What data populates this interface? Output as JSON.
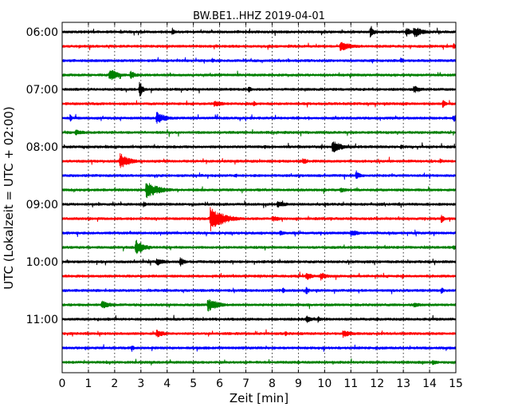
{
  "chart_data": {
    "type": "line",
    "title": "BW.BE1..HHZ 2019-04-01",
    "xlabel": "Zeit  [min]",
    "ylabel": "UTC (Lokalzeit = UTC + 02:00)",
    "xlim": [
      0,
      15
    ],
    "x_ticks": [
      "0",
      "1",
      "2",
      "3",
      "4",
      "5",
      "6",
      "7",
      "8",
      "9",
      "10",
      "11",
      "12",
      "13",
      "14",
      "15"
    ],
    "y_ticks": [
      "06:00",
      "07:00",
      "08:00",
      "09:00",
      "10:00",
      "11:00"
    ],
    "grid": "vertical dotted",
    "trace_colors": [
      "#000000",
      "#ff0000",
      "#0000ff",
      "#008000"
    ],
    "traces": [
      {
        "start": "06:00",
        "events": [
          {
            "t": 4.2,
            "amp": 0.45,
            "dur": 0.12
          },
          {
            "t": 11.75,
            "amp": 0.85,
            "dur": 0.12
          },
          {
            "t": 13.1,
            "amp": 0.6,
            "dur": 0.2
          },
          {
            "t": 13.4,
            "amp": 0.7,
            "dur": 0.35
          }
        ]
      },
      {
        "start": "06:15",
        "events": [
          {
            "t": 10.6,
            "amp": 0.6,
            "dur": 0.45
          },
          {
            "t": 14.9,
            "amp": 0.45,
            "dur": 0.1
          }
        ]
      },
      {
        "start": "06:30",
        "events": [
          {
            "t": 5.7,
            "amp": 0.35,
            "dur": 0.15
          },
          {
            "t": 12.9,
            "amp": 0.35,
            "dur": 0.15
          }
        ]
      },
      {
        "start": "06:45",
        "events": [
          {
            "t": 1.8,
            "amp": 0.75,
            "dur": 0.35
          },
          {
            "t": 2.6,
            "amp": 0.5,
            "dur": 0.25
          }
        ]
      },
      {
        "start": "07:00",
        "events": [
          {
            "t": 2.95,
            "amp": 1.05,
            "dur": 0.12
          },
          {
            "t": 7.1,
            "amp": 0.5,
            "dur": 0.1
          },
          {
            "t": 13.4,
            "amp": 0.45,
            "dur": 0.35
          }
        ]
      },
      {
        "start": "07:15",
        "events": [
          {
            "t": 5.8,
            "amp": 0.35,
            "dur": 0.5
          },
          {
            "t": 14.5,
            "amp": 0.55,
            "dur": 0.12
          },
          {
            "t": 7.3,
            "amp": 0.35,
            "dur": 0.1
          }
        ]
      },
      {
        "start": "07:30",
        "events": [
          {
            "t": 0.3,
            "amp": 0.45,
            "dur": 0.1
          },
          {
            "t": 3.6,
            "amp": 0.75,
            "dur": 0.35
          },
          {
            "t": 14.9,
            "amp": 0.45,
            "dur": 0.3
          }
        ]
      },
      {
        "start": "07:45",
        "events": [
          {
            "t": 0.5,
            "amp": 0.35,
            "dur": 0.4
          }
        ]
      },
      {
        "start": "08:00",
        "events": [
          {
            "t": 10.3,
            "amp": 0.75,
            "dur": 0.35
          },
          {
            "t": 12.9,
            "amp": 0.35,
            "dur": 0.15
          },
          {
            "t": 7.7,
            "amp": 0.3,
            "dur": 0.1
          }
        ]
      },
      {
        "start": "08:15",
        "events": [
          {
            "t": 2.2,
            "amp": 1.0,
            "dur": 0.35
          },
          {
            "t": 9.2,
            "amp": 0.45,
            "dur": 0.12
          },
          {
            "t": 14.4,
            "amp": 0.3,
            "dur": 0.1
          }
        ]
      },
      {
        "start": "08:30",
        "events": [
          {
            "t": 11.2,
            "amp": 0.6,
            "dur": 0.15
          },
          {
            "t": 6.6,
            "amp": 0.3,
            "dur": 0.1
          }
        ]
      },
      {
        "start": "08:45",
        "events": [
          {
            "t": 3.2,
            "amp": 1.0,
            "dur": 0.5
          },
          {
            "t": 10.6,
            "amp": 0.3,
            "dur": 0.4
          }
        ]
      },
      {
        "start": "09:00",
        "events": [
          {
            "t": 8.2,
            "amp": 0.35,
            "dur": 0.5
          },
          {
            "t": 3.1,
            "amp": 0.35,
            "dur": 0.15
          }
        ]
      },
      {
        "start": "09:15",
        "events": [
          {
            "t": 5.65,
            "amp": 1.5,
            "dur": 0.5
          },
          {
            "t": 14.45,
            "amp": 0.55,
            "dur": 0.1
          },
          {
            "t": 8.0,
            "amp": 0.35,
            "dur": 0.4
          }
        ]
      },
      {
        "start": "09:30",
        "events": [
          {
            "t": 11.0,
            "amp": 0.45,
            "dur": 0.3
          },
          {
            "t": 8.3,
            "amp": 0.35,
            "dur": 0.15
          }
        ]
      },
      {
        "start": "09:45",
        "events": [
          {
            "t": 2.8,
            "amp": 1.0,
            "dur": 0.3
          },
          {
            "t": 14.9,
            "amp": 0.35,
            "dur": 0.1
          }
        ]
      },
      {
        "start": "10:00",
        "events": [
          {
            "t": 3.6,
            "amp": 0.5,
            "dur": 0.3
          },
          {
            "t": 4.5,
            "amp": 0.65,
            "dur": 0.15
          }
        ]
      },
      {
        "start": "10:15",
        "events": [
          {
            "t": 9.3,
            "amp": 0.5,
            "dur": 0.25
          },
          {
            "t": 9.85,
            "amp": 0.5,
            "dur": 0.25
          }
        ]
      },
      {
        "start": "10:30",
        "events": [
          {
            "t": 8.4,
            "amp": 0.45,
            "dur": 0.1
          },
          {
            "t": 9.3,
            "amp": 0.55,
            "dur": 0.1
          },
          {
            "t": 14.45,
            "amp": 0.45,
            "dur": 0.1
          }
        ]
      },
      {
        "start": "10:45",
        "events": [
          {
            "t": 1.5,
            "amp": 0.55,
            "dur": 0.35
          },
          {
            "t": 5.55,
            "amp": 0.85,
            "dur": 0.4
          },
          {
            "t": 13.4,
            "amp": 0.35,
            "dur": 0.3
          }
        ]
      },
      {
        "start": "11:00",
        "events": [
          {
            "t": 9.3,
            "amp": 0.45,
            "dur": 0.25
          },
          {
            "t": 9.75,
            "amp": 0.4,
            "dur": 0.1
          }
        ]
      },
      {
        "start": "11:15",
        "events": [
          {
            "t": 3.6,
            "amp": 0.45,
            "dur": 0.35
          },
          {
            "t": 10.7,
            "amp": 0.45,
            "dur": 0.35
          },
          {
            "t": 8.5,
            "amp": 0.35,
            "dur": 0.1
          }
        ]
      },
      {
        "start": "11:30",
        "events": [
          {
            "t": 2.65,
            "amp": 0.45,
            "dur": 0.1
          }
        ]
      },
      {
        "start": "11:45",
        "events": [
          {
            "t": 14.1,
            "amp": 0.3,
            "dur": 0.3
          }
        ]
      }
    ]
  }
}
